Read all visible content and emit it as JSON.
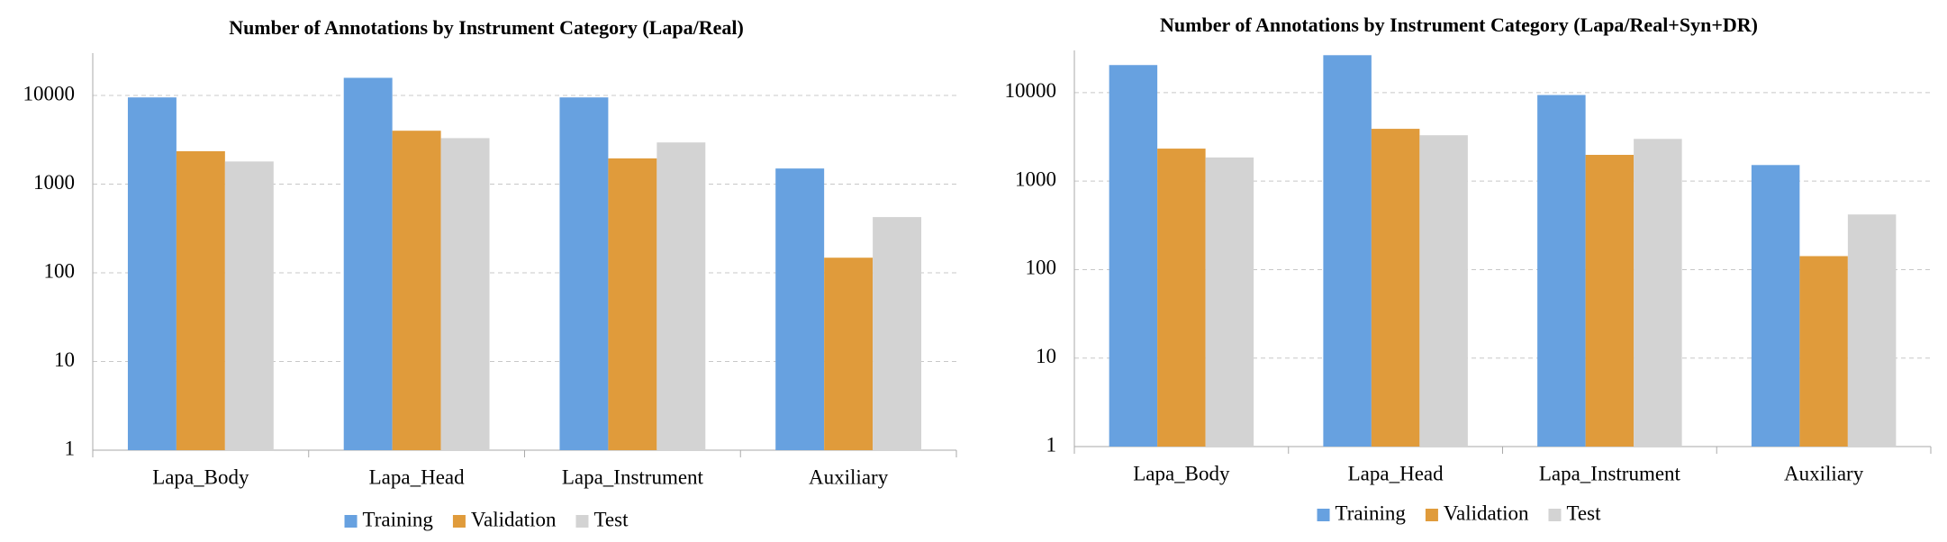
{
  "chart_data": [
    {
      "type": "bar",
      "title": "Number of Annotations by Instrument Category (Lapa/Real)",
      "categories": [
        "Lapa_Body",
        "Lapa_Head",
        "Lapa_Instrument",
        "Auxiliary"
      ],
      "series": [
        {
          "name": "Training",
          "color": "#67a1e0",
          "values": [
            9500,
            15800,
            9500,
            1500
          ]
        },
        {
          "name": "Validation",
          "color": "#e09b3b",
          "values": [
            2350,
            4000,
            1950,
            148
          ]
        },
        {
          "name": "Test",
          "color": "#d3d3d3",
          "values": [
            1800,
            3300,
            2950,
            425
          ]
        }
      ],
      "ylim": [
        1,
        30000
      ],
      "yticks": [
        1,
        10,
        100,
        1000,
        10000
      ],
      "log_scale": true,
      "grid": true,
      "legend": "bottom"
    },
    {
      "type": "bar",
      "title": "Number of Annotations by Instrument Category (Lapa/Real+Syn+DR)",
      "categories": [
        "Lapa_Body",
        "Lapa_Head",
        "Lapa_Instrument",
        "Auxiliary"
      ],
      "series": [
        {
          "name": "Training",
          "color": "#67a1e0",
          "values": [
            20500,
            26500,
            9400,
            1520
          ]
        },
        {
          "name": "Validation",
          "color": "#e09b3b",
          "values": [
            2330,
            3900,
            1980,
            142
          ]
        },
        {
          "name": "Test",
          "color": "#d3d3d3",
          "values": [
            1850,
            3300,
            3000,
            420
          ]
        }
      ],
      "ylim": [
        1,
        30000
      ],
      "yticks": [
        1,
        10,
        100,
        1000,
        10000
      ],
      "log_scale": true,
      "grid": true,
      "legend": "bottom"
    }
  ]
}
